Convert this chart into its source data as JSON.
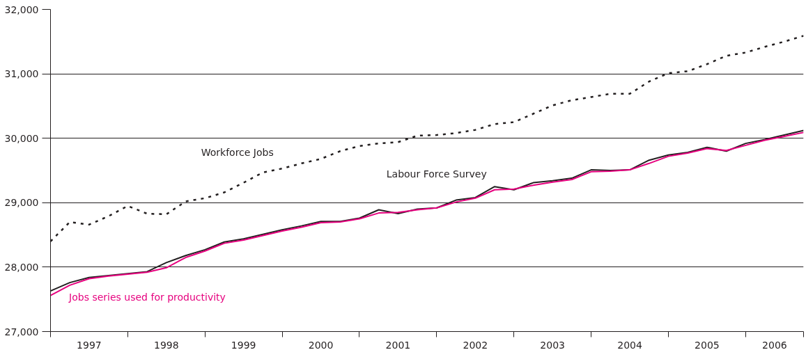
{
  "chart_data": {
    "type": "line",
    "x": [
      1997,
      1997.25,
      1997.5,
      1997.75,
      1998,
      1998.25,
      1998.5,
      1998.75,
      1999,
      1999.25,
      1999.5,
      1999.75,
      2000,
      2000.25,
      2000.5,
      2000.75,
      2001,
      2001.25,
      2001.5,
      2001.75,
      2002,
      2002.25,
      2002.5,
      2002.75,
      2003,
      2003.25,
      2003.5,
      2003.75,
      2004,
      2004.25,
      2004.5,
      2004.75,
      2005,
      2005.25,
      2005.5,
      2005.75,
      2006,
      2006.25,
      2006.5,
      2006.75
    ],
    "series": [
      {
        "name": "Workforce Jobs",
        "color": "#231f20",
        "line_style": "dotted",
        "values": [
          28400,
          28700,
          28660,
          28790,
          28950,
          28830,
          28820,
          29020,
          29070,
          29160,
          29310,
          29470,
          29530,
          29610,
          29680,
          29800,
          29880,
          29920,
          29940,
          30040,
          30050,
          30080,
          30130,
          30220,
          30250,
          30380,
          30510,
          30590,
          30640,
          30690,
          30690,
          30880,
          31010,
          31040,
          31150,
          31280,
          31330,
          31420,
          31500,
          31590
        ]
      },
      {
        "name": "Labour Force Survey",
        "color": "#231f20",
        "line_style": "solid",
        "values": [
          27630,
          27760,
          27840,
          27870,
          27900,
          27930,
          28070,
          28180,
          28270,
          28390,
          28440,
          28510,
          28580,
          28640,
          28710,
          28710,
          28760,
          28890,
          28830,
          28900,
          28920,
          29040,
          29080,
          29250,
          29200,
          29310,
          29340,
          29380,
          29510,
          29500,
          29510,
          29660,
          29740,
          29780,
          29860,
          29800,
          29920,
          29980,
          30050,
          30120
        ]
      },
      {
        "name": "Jobs series used for productivity",
        "color": "#e6007e",
        "line_style": "solid",
        "values": [
          27560,
          27720,
          27820,
          27860,
          27890,
          27920,
          27990,
          28150,
          28250,
          28370,
          28420,
          28490,
          28560,
          28620,
          28690,
          28700,
          28750,
          28840,
          28850,
          28890,
          28920,
          29010,
          29070,
          29200,
          29210,
          29270,
          29320,
          29360,
          29480,
          29490,
          29510,
          29610,
          29720,
          29770,
          29840,
          29810,
          29890,
          29970,
          30030,
          30090
        ]
      }
    ],
    "xlim": [
      1997,
      2006.75
    ],
    "xticks": [
      {
        "value": 1997,
        "label": null
      },
      {
        "value": 1998,
        "label": null
      },
      {
        "value": 1999,
        "label": null
      },
      {
        "value": 2000,
        "label": null
      },
      {
        "value": 2001,
        "label": null
      },
      {
        "value": 2002,
        "label": null
      },
      {
        "value": 2003,
        "label": null
      },
      {
        "value": 2004,
        "label": null
      },
      {
        "value": 2005,
        "label": null
      },
      {
        "value": 2006,
        "label": null
      },
      {
        "value": 2006.75,
        "label": null
      },
      {
        "value": 1997.5,
        "label": "1997"
      },
      {
        "value": 1998.5,
        "label": "1998"
      },
      {
        "value": 1999.5,
        "label": "1999"
      },
      {
        "value": 2000.5,
        "label": "2000"
      },
      {
        "value": 2001.5,
        "label": "2001"
      },
      {
        "value": 2002.5,
        "label": "2002"
      },
      {
        "value": 2003.5,
        "label": "2003"
      },
      {
        "value": 2004.5,
        "label": "2004"
      },
      {
        "value": 2005.5,
        "label": "2005"
      },
      {
        "value": 2006.375,
        "label": "2006"
      }
    ],
    "ylim": [
      27000,
      32000
    ],
    "yticks": [
      {
        "value": 27000,
        "label": "27,000"
      },
      {
        "value": 28000,
        "label": "28,000"
      },
      {
        "value": 29000,
        "label": "29,000"
      },
      {
        "value": 30000,
        "label": "30,000"
      },
      {
        "value": 31000,
        "label": "31,000"
      },
      {
        "value": 32000,
        "label": "32,000"
      }
    ],
    "grid": "y",
    "marker": "none"
  }
}
